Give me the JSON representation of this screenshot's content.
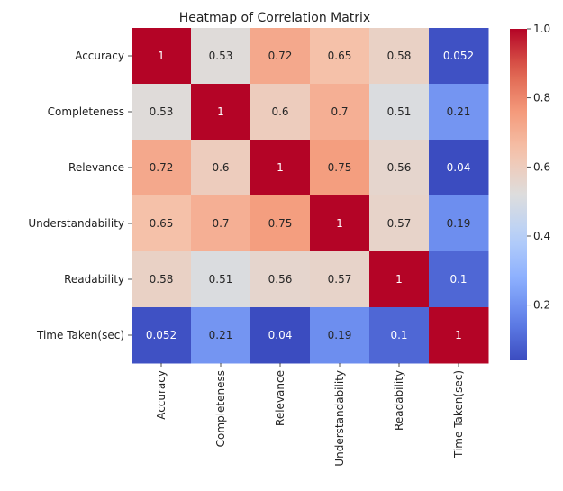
{
  "chart_data": {
    "type": "heatmap",
    "title": "Heatmap of Correlation Matrix",
    "xlabel": "",
    "ylabel": "",
    "colormap": "coolwarm",
    "color_range": [
      0.04,
      1
    ],
    "colorbar_ticks": [
      "0.2",
      "0.4",
      "0.6",
      "0.8",
      "1.0"
    ],
    "colorbar_tick_values": [
      0.2,
      0.4,
      0.6,
      0.8,
      1.0
    ],
    "rows": [
      "Accuracy",
      "Completeness",
      "Relevance",
      "Understandability",
      "Readability",
      "Time Taken(sec)"
    ],
    "columns": [
      "Accuracy",
      "Completeness",
      "Relevance",
      "Understandability",
      "Readability",
      "Time Taken(sec)"
    ],
    "values": [
      [
        1,
        0.53,
        0.72,
        0.65,
        0.58,
        0.052
      ],
      [
        0.53,
        1,
        0.6,
        0.7,
        0.51,
        0.21
      ],
      [
        0.72,
        0.6,
        1,
        0.75,
        0.56,
        0.04
      ],
      [
        0.65,
        0.7,
        0.75,
        1,
        0.57,
        0.19
      ],
      [
        0.58,
        0.51,
        0.56,
        0.57,
        1,
        0.1
      ],
      [
        0.052,
        0.21,
        0.04,
        0.19,
        0.1,
        1
      ]
    ],
    "labels": [
      [
        "1",
        "0.53",
        "0.72",
        "0.65",
        "0.58",
        "0.052"
      ],
      [
        "0.53",
        "1",
        "0.6",
        "0.7",
        "0.51",
        "0.21"
      ],
      [
        "0.72",
        "0.6",
        "1",
        "0.75",
        "0.56",
        "0.04"
      ],
      [
        "0.65",
        "0.7",
        "0.75",
        "1",
        "0.57",
        "0.19"
      ],
      [
        "0.58",
        "0.51",
        "0.56",
        "0.57",
        "1",
        "0.1"
      ],
      [
        "0.052",
        "0.21",
        "0.04",
        "0.19",
        "0.1",
        "1"
      ]
    ]
  }
}
